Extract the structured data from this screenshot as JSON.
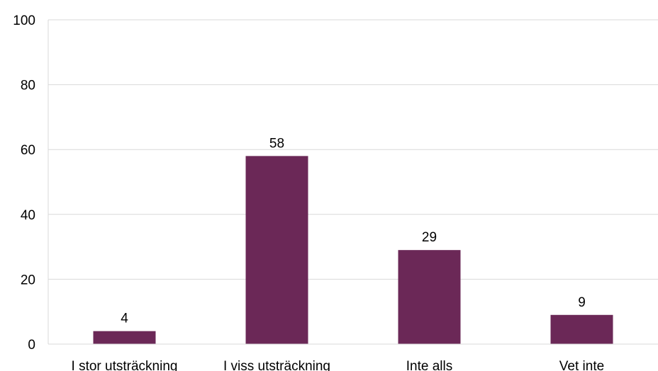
{
  "chart_data": {
    "type": "bar",
    "title": "",
    "xlabel": "",
    "ylabel": "",
    "categories": [
      "I stor utsträckning",
      "I viss utsträckning",
      "Inte alls",
      "Vet inte"
    ],
    "values": [
      4,
      58,
      29,
      9
    ],
    "data_labels": [
      "4",
      "58",
      "29",
      "9"
    ],
    "ylim": [
      0,
      100
    ],
    "yticks": [
      0,
      20,
      40,
      60,
      80,
      100
    ],
    "ytick_labels": [
      "0",
      "20",
      "40",
      "60",
      "80",
      "100"
    ],
    "grid": true,
    "legend": "none",
    "bar_color": "#6b2857",
    "grid_color": "#d9d9d9"
  }
}
